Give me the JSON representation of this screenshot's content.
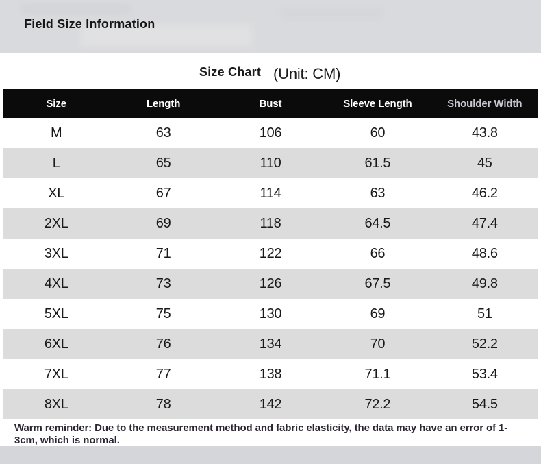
{
  "header": {
    "title": "Field Size Information",
    "chart_title": "Size Chart",
    "unit_label": "(Unit: CM)"
  },
  "table": {
    "headers": [
      "Size",
      "Length",
      "Bust",
      "Sleeve Length",
      "Shoulder Width"
    ],
    "rows": [
      [
        "M",
        "63",
        "106",
        "60",
        "43.8"
      ],
      [
        "L",
        "65",
        "110",
        "61.5",
        "45"
      ],
      [
        "XL",
        "67",
        "114",
        "63",
        "46.2"
      ],
      [
        "2XL",
        "69",
        "118",
        "64.5",
        "47.4"
      ],
      [
        "3XL",
        "71",
        "122",
        "66",
        "48.6"
      ],
      [
        "4XL",
        "73",
        "126",
        "67.5",
        "49.8"
      ],
      [
        "5XL",
        "75",
        "130",
        "69",
        "51"
      ],
      [
        "6XL",
        "76",
        "134",
        "70",
        "52.2"
      ],
      [
        "7XL",
        "77",
        "138",
        "71.1",
        "53.4"
      ],
      [
        "8XL",
        "78",
        "142",
        "72.2",
        "54.5"
      ]
    ]
  },
  "footer": {
    "note": "Warm reminder: Due to the measurement method and fabric elasticity, the data may have an error of 1-3cm, which is normal."
  },
  "colors": {
    "top_band_bg": "#d9dadd",
    "header_row_bg": "#0b0b0b",
    "header_text": "#ffffff",
    "header_text_dim": "#c7c8d0",
    "alt_row_bg": "#dcdcdd",
    "row_bg": "#ffffff",
    "cell_text": "#191919",
    "note_text": "#2b2433",
    "bottom_strip_bg": "#d5d6da"
  }
}
